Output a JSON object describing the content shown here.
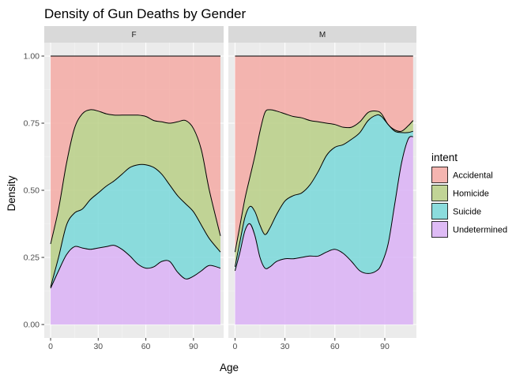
{
  "chart_data": {
    "type": "area",
    "subtype": "stacked-density-fill",
    "title": "Density of Gun Deaths by Gender",
    "xlabel": "Age",
    "ylabel": "Density",
    "xlim": [
      -4,
      109
    ],
    "ylim": [
      -0.05,
      1.05
    ],
    "x_ticks": [
      0,
      30,
      60,
      90
    ],
    "x_tick_labels": [
      "0",
      "30",
      "60",
      "90"
    ],
    "y_ticks": [
      0,
      0.25,
      0.5,
      0.75,
      1.0
    ],
    "y_tick_labels": [
      "0.00",
      "0.25",
      "0.50",
      "0.75",
      "1.00"
    ],
    "grid": true,
    "legend_position": "right",
    "legend_title": "intent",
    "categories": [
      "Accidental",
      "Homicide",
      "Suicide",
      "Undetermined"
    ],
    "colors": {
      "Accidental": "#f4aaa4",
      "Homicide": "#b9cf86",
      "Suicide": "#79d8d9",
      "Undetermined": "#dab2f6"
    },
    "panel_background": "#ebebeb",
    "strip_background": "#d9d9d9",
    "panels": [
      {
        "label": "F",
        "x": [
          0,
          5,
          10,
          15,
          20,
          25,
          30,
          35,
          40,
          45,
          50,
          55,
          60,
          65,
          70,
          75,
          80,
          85,
          90,
          95,
          100,
          107
        ],
        "boundaries": {
          "undetermined_top": [
            0.135,
            0.2,
            0.26,
            0.29,
            0.285,
            0.28,
            0.285,
            0.29,
            0.295,
            0.28,
            0.255,
            0.225,
            0.21,
            0.215,
            0.235,
            0.235,
            0.195,
            0.17,
            0.18,
            0.2,
            0.22,
            0.21
          ],
          "suicide_top": [
            0.14,
            0.25,
            0.37,
            0.415,
            0.43,
            0.465,
            0.49,
            0.515,
            0.535,
            0.56,
            0.585,
            0.595,
            0.595,
            0.585,
            0.56,
            0.52,
            0.48,
            0.45,
            0.42,
            0.37,
            0.32,
            0.27
          ],
          "homicide_top": [
            0.3,
            0.43,
            0.6,
            0.73,
            0.785,
            0.8,
            0.795,
            0.785,
            0.78,
            0.78,
            0.78,
            0.78,
            0.775,
            0.76,
            0.755,
            0.75,
            0.755,
            0.76,
            0.73,
            0.65,
            0.5,
            0.33
          ],
          "accidental_top": [
            1.0,
            1.0,
            1.0,
            1.0,
            1.0,
            1.0,
            1.0,
            1.0,
            1.0,
            1.0,
            1.0,
            1.0,
            1.0,
            1.0,
            1.0,
            1.0,
            1.0,
            1.0,
            1.0,
            1.0,
            1.0,
            1.0
          ]
        }
      },
      {
        "label": "M",
        "x": [
          0,
          3,
          6,
          9,
          12,
          15,
          18,
          21,
          25,
          30,
          35,
          40,
          45,
          50,
          55,
          60,
          65,
          70,
          75,
          80,
          85,
          88,
          92,
          96,
          100,
          104,
          107
        ],
        "boundaries": {
          "undetermined_top": [
            0.2,
            0.27,
            0.35,
            0.375,
            0.33,
            0.25,
            0.21,
            0.215,
            0.235,
            0.245,
            0.245,
            0.25,
            0.255,
            0.255,
            0.27,
            0.28,
            0.265,
            0.235,
            0.2,
            0.19,
            0.2,
            0.225,
            0.3,
            0.45,
            0.6,
            0.69,
            0.7
          ],
          "suicide_top": [
            0.215,
            0.31,
            0.4,
            0.44,
            0.42,
            0.37,
            0.335,
            0.36,
            0.41,
            0.46,
            0.48,
            0.49,
            0.52,
            0.57,
            0.63,
            0.66,
            0.67,
            0.69,
            0.715,
            0.76,
            0.78,
            0.775,
            0.745,
            0.72,
            0.715,
            0.715,
            0.72
          ],
          "homicide_top": [
            0.27,
            0.37,
            0.47,
            0.55,
            0.63,
            0.72,
            0.79,
            0.8,
            0.795,
            0.785,
            0.775,
            0.77,
            0.76,
            0.755,
            0.75,
            0.745,
            0.735,
            0.735,
            0.755,
            0.79,
            0.795,
            0.785,
            0.745,
            0.725,
            0.72,
            0.74,
            0.76
          ],
          "accidental_top": [
            1.0,
            1.0,
            1.0,
            1.0,
            1.0,
            1.0,
            1.0,
            1.0,
            1.0,
            1.0,
            1.0,
            1.0,
            1.0,
            1.0,
            1.0,
            1.0,
            1.0,
            1.0,
            1.0,
            1.0,
            1.0,
            1.0,
            1.0,
            1.0,
            1.0,
            1.0,
            1.0
          ]
        }
      }
    ]
  }
}
